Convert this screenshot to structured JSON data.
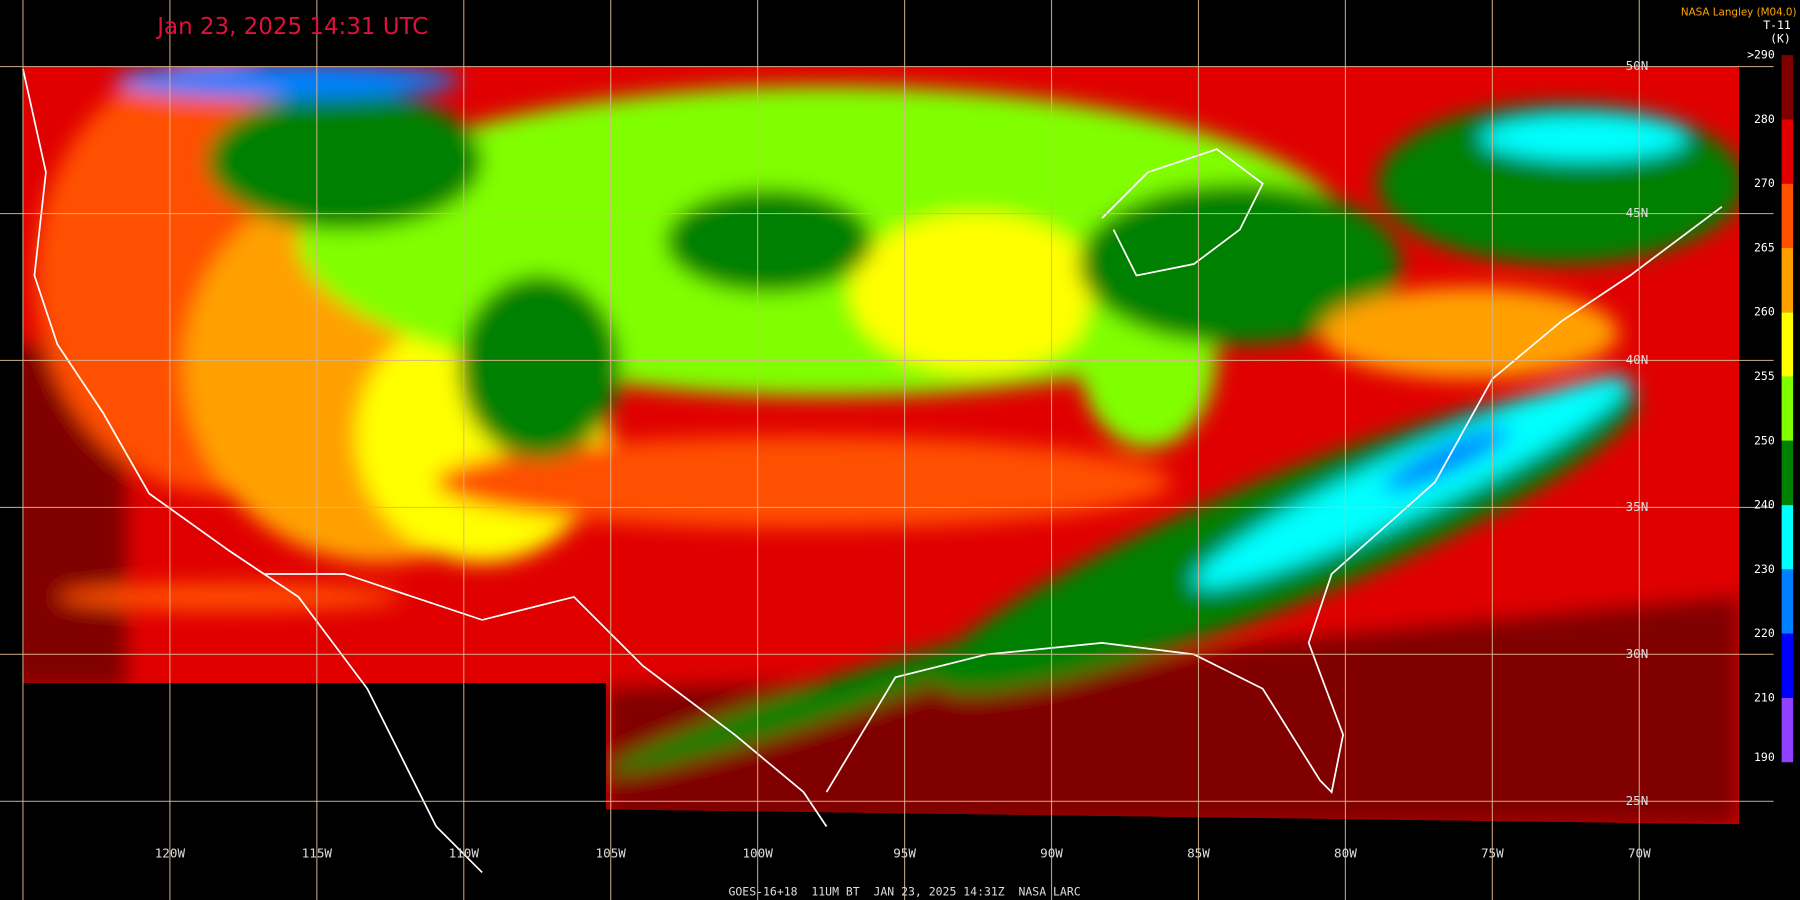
{
  "header": {
    "title": "Jan 23, 2025 14:31 UTC",
    "credit": "NASA Langley (M04.0)",
    "product": "T-11",
    "unit": "(K)"
  },
  "colorbar": {
    "labels": [
      ">290",
      "280",
      "270",
      "265",
      "260",
      "255",
      "250",
      "240",
      "230",
      "220",
      "210",
      "190"
    ],
    "colors": [
      "#800000",
      "#e00000",
      "#ff5000",
      "#ffa000",
      "#ffff00",
      "#80ff00",
      "#008000",
      "#00ffff",
      "#0080ff",
      "#0000ff",
      "#9040ff"
    ]
  },
  "longitude_labels": [
    "120W",
    "115W",
    "110W",
    "105W",
    "100W",
    "95W",
    "90W",
    "85W",
    "80W",
    "75W",
    "70W"
  ],
  "latitude_labels": [
    "50N",
    "45N",
    "40N",
    "35N",
    "30N",
    "25N"
  ],
  "footer": "GOES-16+18  11UM BT  JAN 23, 2025 14:31Z  NASA LARC"
}
